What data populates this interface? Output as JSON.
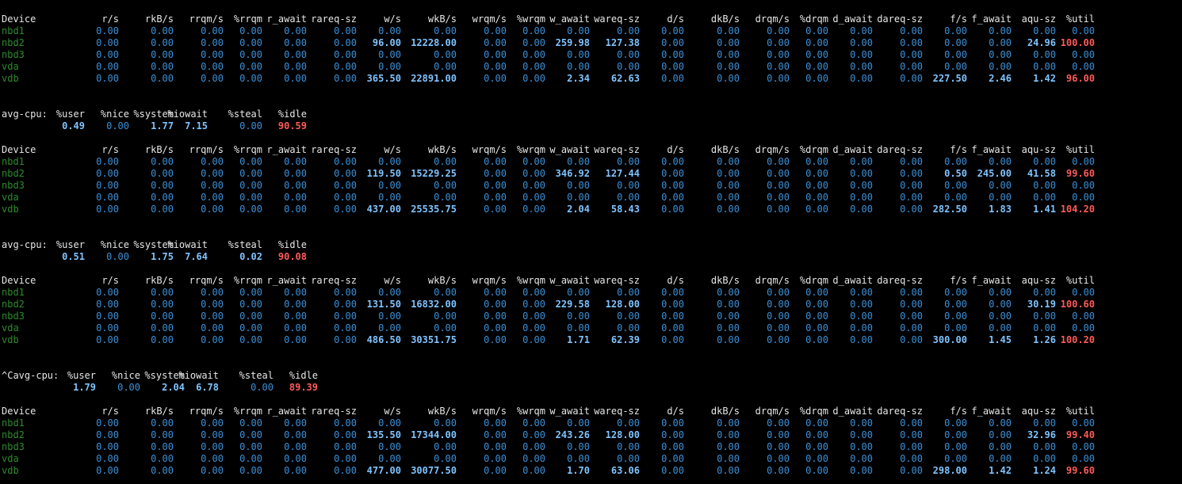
{
  "colors": {
    "background": "#000000",
    "header_text": "#e6e6e6",
    "device_name": "#2e8b2e",
    "zero_value": "#3b8fd6",
    "nonzero_value": "#7fc3ff",
    "alert_value": "#ff5a5a"
  },
  "device_columns": [
    "Device",
    "r/s",
    "rkB/s",
    "rrqm/s",
    "%rrqm",
    "r_await",
    "rareq-sz",
    "w/s",
    "wkB/s",
    "wrqm/s",
    "%wrqm",
    "w_await",
    "wareq-sz",
    "d/s",
    "dkB/s",
    "drqm/s",
    "%drqm",
    "d_await",
    "dareq-sz",
    "f/s",
    "f_await",
    "aqu-sz",
    "%util"
  ],
  "cpu_columns": [
    "%user",
    "%nice",
    "%system",
    "%iowait",
    "%steal",
    "%idle"
  ],
  "blocks": [
    {
      "devices": [
        {
          "name": "nbd1",
          "values": [
            "0.00",
            "0.00",
            "0.00",
            "0.00",
            "0.00",
            "0.00",
            "0.00",
            "0.00",
            "0.00",
            "0.00",
            "0.00",
            "0.00",
            "0.00",
            "0.00",
            "0.00",
            "0.00",
            "0.00",
            "0.00",
            "0.00",
            "0.00",
            "0.00",
            "0.00"
          ]
        },
        {
          "name": "nbd2",
          "values": [
            "0.00",
            "0.00",
            "0.00",
            "0.00",
            "0.00",
            "0.00",
            "96.00",
            "12228.00",
            "0.00",
            "0.00",
            "259.98",
            "127.38",
            "0.00",
            "0.00",
            "0.00",
            "0.00",
            "0.00",
            "0.00",
            "0.00",
            "0.00",
            "24.96",
            "100.00"
          ]
        },
        {
          "name": "nbd3",
          "values": [
            "0.00",
            "0.00",
            "0.00",
            "0.00",
            "0.00",
            "0.00",
            "0.00",
            "0.00",
            "0.00",
            "0.00",
            "0.00",
            "0.00",
            "0.00",
            "0.00",
            "0.00",
            "0.00",
            "0.00",
            "0.00",
            "0.00",
            "0.00",
            "0.00",
            "0.00"
          ]
        },
        {
          "name": "vda",
          "values": [
            "0.00",
            "0.00",
            "0.00",
            "0.00",
            "0.00",
            "0.00",
            "0.00",
            "0.00",
            "0.00",
            "0.00",
            "0.00",
            "0.00",
            "0.00",
            "0.00",
            "0.00",
            "0.00",
            "0.00",
            "0.00",
            "0.00",
            "0.00",
            "0.00",
            "0.00"
          ]
        },
        {
          "name": "vdb",
          "values": [
            "0.00",
            "0.00",
            "0.00",
            "0.00",
            "0.00",
            "0.00",
            "365.50",
            "22891.00",
            "0.00",
            "0.00",
            "2.34",
            "62.63",
            "0.00",
            "0.00",
            "0.00",
            "0.00",
            "0.00",
            "0.00",
            "227.50",
            "2.46",
            "1.42",
            "96.00"
          ]
        }
      ],
      "cpu": {
        "label": "avg-cpu:",
        "values": [
          "0.49",
          "0.00",
          "1.77",
          "7.15",
          "0.00",
          "90.59"
        ]
      }
    },
    {
      "devices": [
        {
          "name": "nbd1",
          "values": [
            "0.00",
            "0.00",
            "0.00",
            "0.00",
            "0.00",
            "0.00",
            "0.00",
            "0.00",
            "0.00",
            "0.00",
            "0.00",
            "0.00",
            "0.00",
            "0.00",
            "0.00",
            "0.00",
            "0.00",
            "0.00",
            "0.00",
            "0.00",
            "0.00",
            "0.00"
          ]
        },
        {
          "name": "nbd2",
          "values": [
            "0.00",
            "0.00",
            "0.00",
            "0.00",
            "0.00",
            "0.00",
            "119.50",
            "15229.25",
            "0.00",
            "0.00",
            "346.92",
            "127.44",
            "0.00",
            "0.00",
            "0.00",
            "0.00",
            "0.00",
            "0.00",
            "0.50",
            "245.00",
            "41.58",
            "99.60"
          ]
        },
        {
          "name": "nbd3",
          "values": [
            "0.00",
            "0.00",
            "0.00",
            "0.00",
            "0.00",
            "0.00",
            "0.00",
            "0.00",
            "0.00",
            "0.00",
            "0.00",
            "0.00",
            "0.00",
            "0.00",
            "0.00",
            "0.00",
            "0.00",
            "0.00",
            "0.00",
            "0.00",
            "0.00",
            "0.00"
          ]
        },
        {
          "name": "vda",
          "values": [
            "0.00",
            "0.00",
            "0.00",
            "0.00",
            "0.00",
            "0.00",
            "0.00",
            "0.00",
            "0.00",
            "0.00",
            "0.00",
            "0.00",
            "0.00",
            "0.00",
            "0.00",
            "0.00",
            "0.00",
            "0.00",
            "0.00",
            "0.00",
            "0.00",
            "0.00"
          ]
        },
        {
          "name": "vdb",
          "values": [
            "0.00",
            "0.00",
            "0.00",
            "0.00",
            "0.00",
            "0.00",
            "437.00",
            "25535.75",
            "0.00",
            "0.00",
            "2.04",
            "58.43",
            "0.00",
            "0.00",
            "0.00",
            "0.00",
            "0.00",
            "0.00",
            "282.50",
            "1.83",
            "1.41",
            "104.20"
          ]
        }
      ],
      "cpu": {
        "label": "avg-cpu:",
        "values": [
          "0.51",
          "0.00",
          "1.75",
          "7.64",
          "0.02",
          "90.08"
        ]
      }
    },
    {
      "devices": [
        {
          "name": "nbd1",
          "values": [
            "0.00",
            "0.00",
            "0.00",
            "0.00",
            "0.00",
            "0.00",
            "0.00",
            "0.00",
            "0.00",
            "0.00",
            "0.00",
            "0.00",
            "0.00",
            "0.00",
            "0.00",
            "0.00",
            "0.00",
            "0.00",
            "0.00",
            "0.00",
            "0.00",
            "0.00"
          ]
        },
        {
          "name": "nbd2",
          "values": [
            "0.00",
            "0.00",
            "0.00",
            "0.00",
            "0.00",
            "0.00",
            "131.50",
            "16832.00",
            "0.00",
            "0.00",
            "229.58",
            "128.00",
            "0.00",
            "0.00",
            "0.00",
            "0.00",
            "0.00",
            "0.00",
            "0.00",
            "0.00",
            "30.19",
            "100.60"
          ]
        },
        {
          "name": "nbd3",
          "values": [
            "0.00",
            "0.00",
            "0.00",
            "0.00",
            "0.00",
            "0.00",
            "0.00",
            "0.00",
            "0.00",
            "0.00",
            "0.00",
            "0.00",
            "0.00",
            "0.00",
            "0.00",
            "0.00",
            "0.00",
            "0.00",
            "0.00",
            "0.00",
            "0.00",
            "0.00"
          ]
        },
        {
          "name": "vda",
          "values": [
            "0.00",
            "0.00",
            "0.00",
            "0.00",
            "0.00",
            "0.00",
            "0.00",
            "0.00",
            "0.00",
            "0.00",
            "0.00",
            "0.00",
            "0.00",
            "0.00",
            "0.00",
            "0.00",
            "0.00",
            "0.00",
            "0.00",
            "0.00",
            "0.00",
            "0.00"
          ]
        },
        {
          "name": "vdb",
          "values": [
            "0.00",
            "0.00",
            "0.00",
            "0.00",
            "0.00",
            "0.00",
            "486.50",
            "30351.75",
            "0.00",
            "0.00",
            "1.71",
            "62.39",
            "0.00",
            "0.00",
            "0.00",
            "0.00",
            "0.00",
            "0.00",
            "300.00",
            "1.45",
            "1.26",
            "100.20"
          ]
        }
      ],
      "cpu": {
        "label": "^Cavg-cpu:",
        "values": [
          "1.79",
          "0.00",
          "2.04",
          "6.78",
          "0.00",
          "89.39"
        ]
      }
    },
    {
      "devices": [
        {
          "name": "nbd1",
          "values": [
            "0.00",
            "0.00",
            "0.00",
            "0.00",
            "0.00",
            "0.00",
            "0.00",
            "0.00",
            "0.00",
            "0.00",
            "0.00",
            "0.00",
            "0.00",
            "0.00",
            "0.00",
            "0.00",
            "0.00",
            "0.00",
            "0.00",
            "0.00",
            "0.00",
            "0.00"
          ]
        },
        {
          "name": "nbd2",
          "values": [
            "0.00",
            "0.00",
            "0.00",
            "0.00",
            "0.00",
            "0.00",
            "135.50",
            "17344.00",
            "0.00",
            "0.00",
            "243.26",
            "128.00",
            "0.00",
            "0.00",
            "0.00",
            "0.00",
            "0.00",
            "0.00",
            "0.00",
            "0.00",
            "32.96",
            "99.40"
          ]
        },
        {
          "name": "nbd3",
          "values": [
            "0.00",
            "0.00",
            "0.00",
            "0.00",
            "0.00",
            "0.00",
            "0.00",
            "0.00",
            "0.00",
            "0.00",
            "0.00",
            "0.00",
            "0.00",
            "0.00",
            "0.00",
            "0.00",
            "0.00",
            "0.00",
            "0.00",
            "0.00",
            "0.00",
            "0.00"
          ]
        },
        {
          "name": "vda",
          "values": [
            "0.00",
            "0.00",
            "0.00",
            "0.00",
            "0.00",
            "0.00",
            "0.00",
            "0.00",
            "0.00",
            "0.00",
            "0.00",
            "0.00",
            "0.00",
            "0.00",
            "0.00",
            "0.00",
            "0.00",
            "0.00",
            "0.00",
            "0.00",
            "0.00",
            "0.00"
          ]
        },
        {
          "name": "vdb",
          "values": [
            "0.00",
            "0.00",
            "0.00",
            "0.00",
            "0.00",
            "0.00",
            "477.00",
            "30077.50",
            "0.00",
            "0.00",
            "1.70",
            "63.06",
            "0.00",
            "0.00",
            "0.00",
            "0.00",
            "0.00",
            "0.00",
            "298.00",
            "1.42",
            "1.24",
            "99.60"
          ]
        }
      ]
    }
  ]
}
